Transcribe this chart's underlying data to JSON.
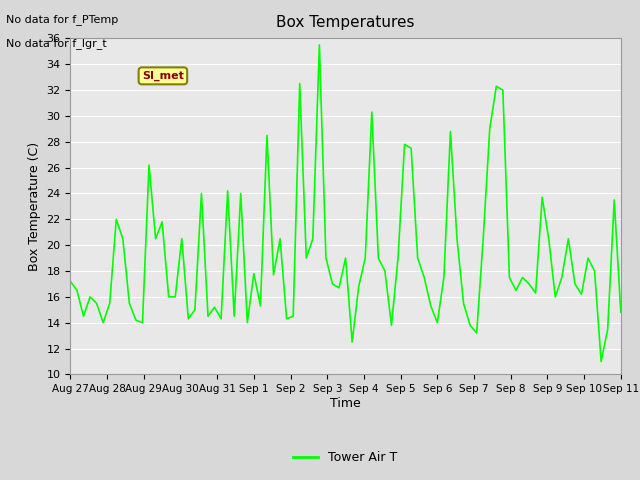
{
  "title": "Box Temperatures",
  "ylabel": "Box Temperature (C)",
  "xlabel": "Time",
  "no_data_text": [
    "No data for f_PTemp",
    "No data for f_lgr_t"
  ],
  "si_met_label": "SI_met",
  "legend_label": "Tower Air T",
  "line_color": "#00FF00",
  "background_color": "#E8E8E8",
  "plot_bg_color": "#F0F0F0",
  "ylim": [
    10,
    36
  ],
  "yticks": [
    10,
    12,
    14,
    16,
    18,
    20,
    22,
    24,
    26,
    28,
    30,
    32,
    34,
    36
  ],
  "xtick_labels": [
    "Aug 27",
    "Aug 28",
    "Aug 29",
    "Aug 30",
    "Aug 31",
    "Sep 1",
    "Sep 2",
    "Sep 3",
    "Sep 4",
    "Sep 5",
    "Sep 6",
    "Sep 7",
    "Sep 8",
    "Sep 9",
    "Sep 10",
    "Sep 11"
  ],
  "x_values": [
    0,
    1,
    2,
    3,
    4,
    5,
    6,
    7,
    8,
    9,
    10,
    11,
    12,
    13,
    14,
    15
  ],
  "tower_air_t": [
    17.2,
    16.5,
    14.5,
    16.0,
    15.5,
    14.0,
    15.5,
    22.0,
    20.5,
    15.5,
    14.2,
    14.0,
    26.2,
    20.5,
    21.8,
    16.0,
    16.0,
    20.5,
    14.3,
    15.0,
    24.0,
    14.5,
    15.2,
    14.3,
    24.2,
    14.5,
    24.0,
    14.0,
    17.8,
    15.3,
    28.5,
    17.7,
    20.5,
    14.3,
    14.5,
    32.5,
    19.0,
    20.5,
    35.5,
    19.0,
    17.0,
    16.7,
    19.0,
    12.5,
    16.8,
    19.0,
    30.3,
    19.0,
    18.0,
    13.8,
    19.0,
    27.8,
    27.5,
    19.0,
    17.5,
    15.3,
    14.0,
    17.5,
    28.8,
    20.5,
    15.5,
    13.8,
    13.2,
    20.5,
    29.0,
    32.3,
    32.0,
    17.5,
    16.5,
    17.5,
    17.0,
    16.3,
    23.7,
    20.5,
    16.0,
    17.5,
    20.5,
    17.0,
    16.2,
    19.0,
    18.0,
    11.0,
    13.5,
    23.5,
    14.8
  ]
}
